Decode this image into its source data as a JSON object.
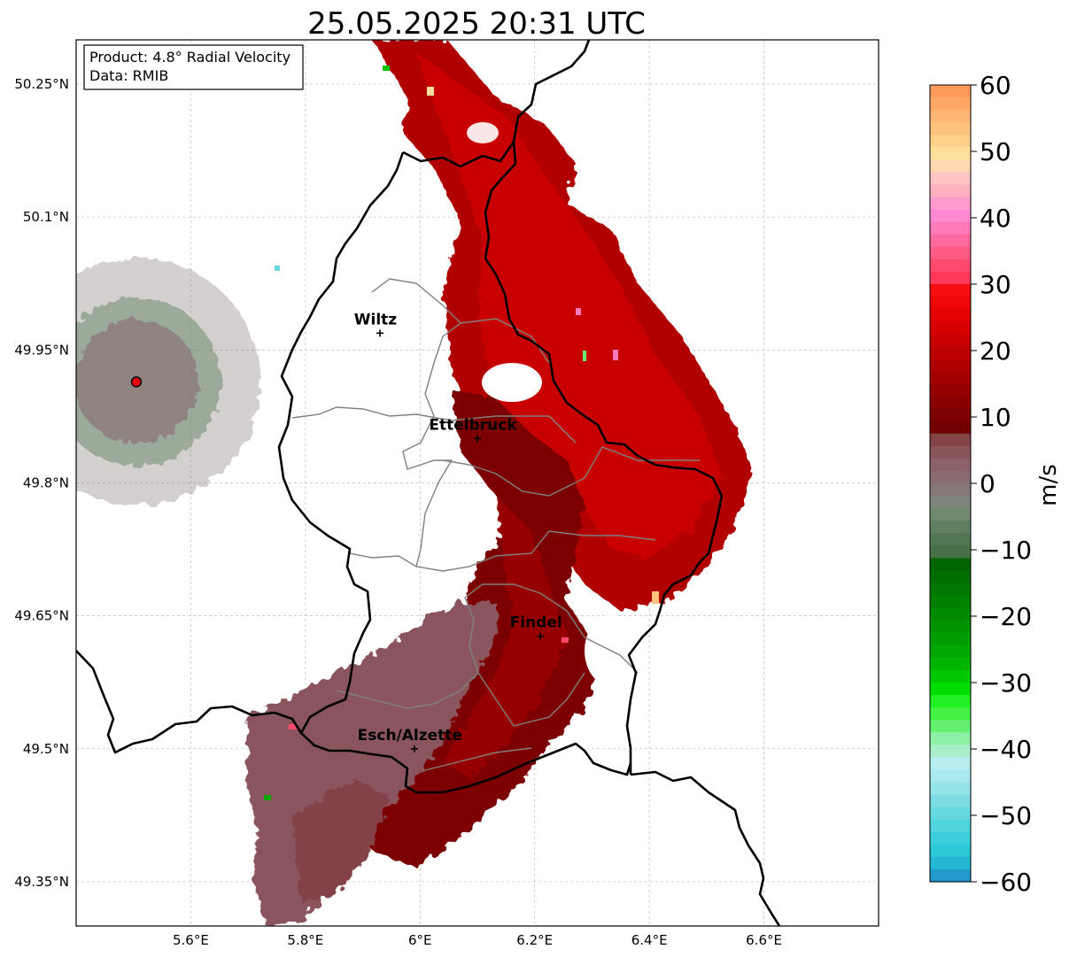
{
  "title": "25.05.2025 20:31 UTC",
  "info_box": {
    "product_line": "Product: 4.8° Radial Velocity",
    "data_line": "Data: RMIB"
  },
  "map": {
    "lon_range": [
      5.4,
      6.8
    ],
    "lat_range": [
      49.3,
      50.3
    ],
    "x_ticks": [
      {
        "value": 5.6,
        "label": "5.6°E"
      },
      {
        "value": 5.8,
        "label": "5.8°E"
      },
      {
        "value": 6.0,
        "label": "6°E"
      },
      {
        "value": 6.2,
        "label": "6.2°E"
      },
      {
        "value": 6.4,
        "label": "6.4°E"
      },
      {
        "value": 6.6,
        "label": "6.6°E"
      }
    ],
    "y_ticks": [
      {
        "value": 50.25,
        "label": "50.25°N"
      },
      {
        "value": 50.1,
        "label": "50.1°N"
      },
      {
        "value": 49.95,
        "label": "49.95°N"
      },
      {
        "value": 49.8,
        "label": "49.8°N"
      },
      {
        "value": 49.65,
        "label": "49.65°N"
      },
      {
        "value": 49.5,
        "label": "49.5°N"
      },
      {
        "value": 49.35,
        "label": "49.35°N"
      }
    ],
    "grid": true,
    "cities": [
      {
        "name": "Wiltz",
        "lon": 5.93,
        "lat": 49.969
      },
      {
        "name": "Ettelbruck",
        "lon": 6.1,
        "lat": 49.85
      },
      {
        "name": "Findel",
        "lon": 6.21,
        "lat": 49.627
      },
      {
        "name": "Esch/Alzette",
        "lon": 5.99,
        "lat": 49.5
      }
    ],
    "radar_site": {
      "lon": 5.505,
      "lat": 49.914
    },
    "colors": {
      "border": "#000000",
      "cantons": "#808080",
      "grid": "#bbbbbb",
      "radar_marker": "#e3000f"
    }
  },
  "colorbar": {
    "label": "m/s",
    "min": -60,
    "max": 60,
    "ticks": [
      60,
      50,
      40,
      30,
      20,
      10,
      0,
      -10,
      -20,
      -30,
      -40,
      -50,
      -60
    ],
    "tick_labels": [
      "60",
      "50",
      "40",
      "30",
      "20",
      "10",
      "0",
      "−10",
      "−20",
      "−30",
      "−40",
      "−50",
      "−60"
    ],
    "colors_top_to_bottom": [
      "#ff9b5a",
      "#ffa866",
      "#ffb574",
      "#ffc27e",
      "#ffd08a",
      "#ffe09b",
      "#ffd9b0",
      "#ffc4c4",
      "#ffb0c0",
      "#ff9ccf",
      "#ff8ad2",
      "#ff7ab8",
      "#ff6a9e",
      "#ff5a86",
      "#ff4a6e",
      "#ff3a58",
      "#f70d0d",
      "#ee0707",
      "#e30202",
      "#d60000",
      "#c90000",
      "#bc0000",
      "#b00000",
      "#a30000",
      "#960000",
      "#8a0000",
      "#7d0000",
      "#730000",
      "#834347",
      "#8a545b",
      "#8d6168",
      "#8a6b70",
      "#857876",
      "#7d857d",
      "#6f8a6f",
      "#5f8060",
      "#517651",
      "#477047",
      "#006400",
      "#006d00",
      "#007700",
      "#008000",
      "#008a00",
      "#009300",
      "#009d00",
      "#00a700",
      "#00b400",
      "#00c800",
      "#00dd00",
      "#22f022",
      "#44f244",
      "#66f070",
      "#8ef0a4",
      "#a8eec8",
      "#b8eef0",
      "#a8eaee",
      "#94e4e8",
      "#7edde4",
      "#66d8e0",
      "#50d4de",
      "#3cd0dc",
      "#2ac8d8",
      "#22b8d4",
      "#2298cc"
    ]
  }
}
